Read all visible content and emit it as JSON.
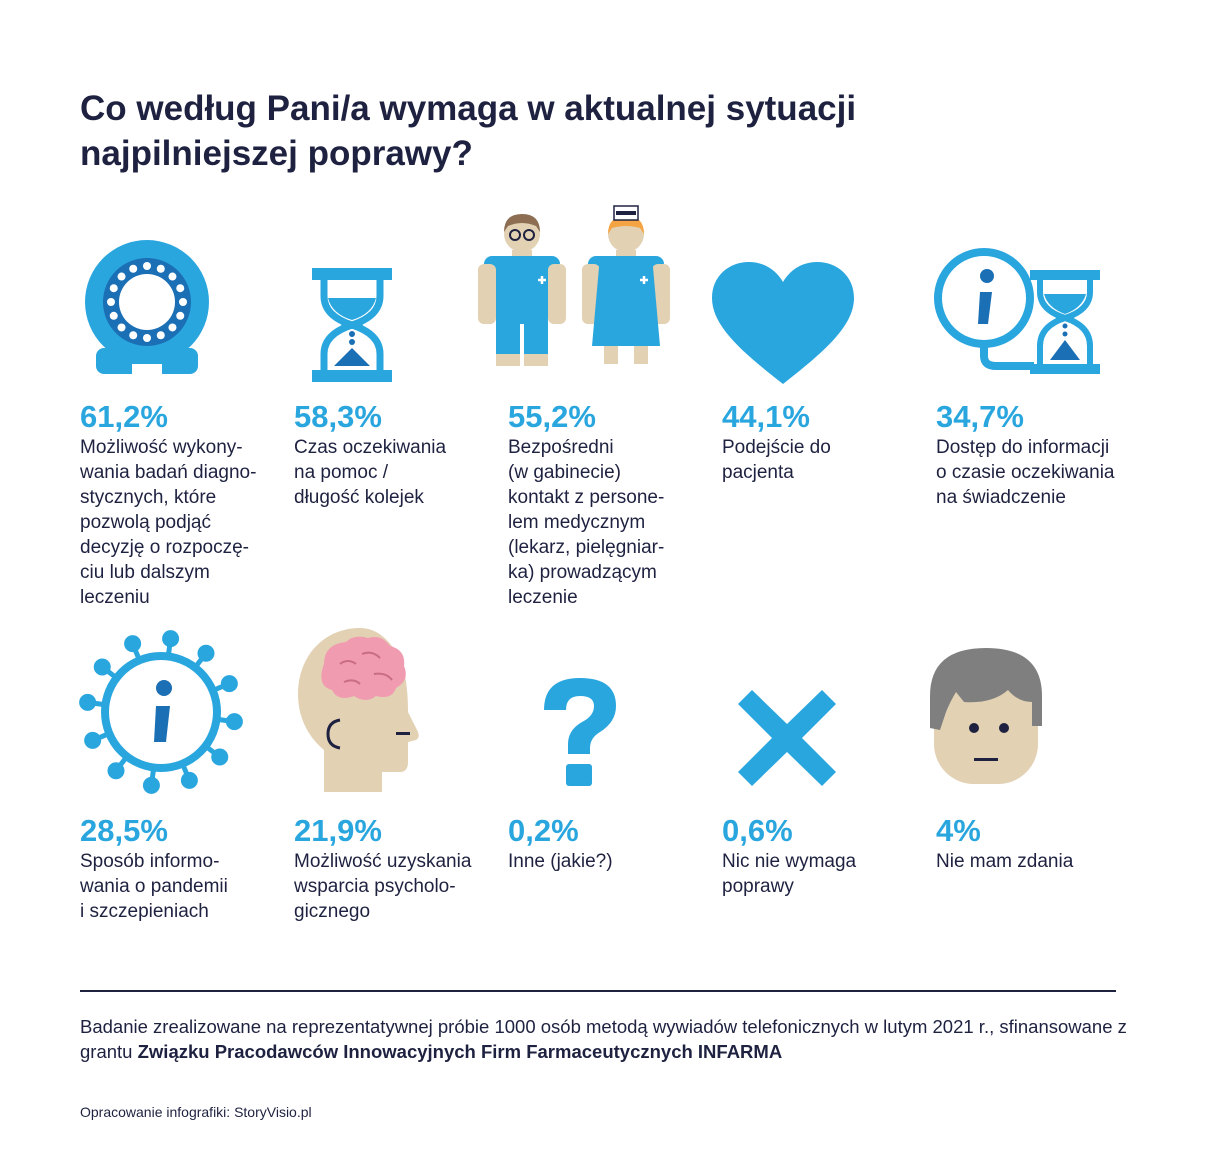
{
  "title": "Co według Pani/a wymaga w aktualnej sytuacji najpilniejszej poprawy?",
  "colors": {
    "accent": "#2aa6df",
    "dark_blue": "#1a6fb5",
    "text": "#1e2240",
    "skin": "#e2d1b3",
    "brain": "#f09bb0",
    "hair_gray": "#7f7f7f",
    "hair_orange": "#f5a443"
  },
  "chart_data": {
    "type": "table",
    "title": "Co według Pani/a wymaga w aktualnej sytuacji najpilniejszej poprawy?",
    "unit": "%",
    "items": [
      {
        "icon": "mri-scanner-icon",
        "value": 61.2,
        "value_label": "61,2%",
        "label": "Możliwość wykony-\nwania badań diagno-\nstycznych, które\npozwolą podjąć\ndecyzję o rozpoczę-\nciu lub dalszym\nleczeniu"
      },
      {
        "icon": "hourglass-icon",
        "value": 58.3,
        "value_label": "58,3%",
        "label": "Czas oczekiwania\nna pomoc /\ndługość kolejek"
      },
      {
        "icon": "medical-staff-icon",
        "value": 55.2,
        "value_label": "55,2%",
        "label": "Bezpośredni\n(w gabinecie)\nkontakt z persone-\nlem medycznym\n(lekarz, pielęgniar-\nka) prowadzącym\nleczenie"
      },
      {
        "icon": "heart-icon",
        "value": 44.1,
        "value_label": "44,1%",
        "label": "Podejście do\npacjenta"
      },
      {
        "icon": "info-hourglass-icon",
        "value": 34.7,
        "value_label": "34,7%",
        "label": "Dostęp do informacji\no czasie oczekiwania\nna świadczenie"
      },
      {
        "icon": "virus-info-icon",
        "value": 28.5,
        "value_label": "28,5%",
        "label": "Sposób informo-\nwania o pandemii\ni szczepieniach"
      },
      {
        "icon": "brain-head-icon",
        "value": 21.9,
        "value_label": "21,9%",
        "label": "Możliwość uzyskania\nwsparcia psycholo-\ngicznego"
      },
      {
        "icon": "question-mark-icon",
        "value": 0.2,
        "value_label": "0,2%",
        "label": "Inne (jakie?)"
      },
      {
        "icon": "cross-icon",
        "value": 0.6,
        "value_label": "0,6%",
        "label": "Nic nie wymaga\npoprawy"
      },
      {
        "icon": "neutral-face-icon",
        "value": 4,
        "value_label": "4%",
        "label": "Nie mam zdania"
      }
    ]
  },
  "footer": {
    "note_plain": "Badanie zrealizowane na reprezentatywnej próbie 1000 osób metodą wywiadów telefonicznych w lutym 2021 r., sfinansowane z grantu ",
    "note_bold": "Związku Pracodawców Innowacyjnych Firm Farmaceutycznych INFARMA",
    "credit": "Opracowanie infografiki: StoryVisio.pl"
  }
}
